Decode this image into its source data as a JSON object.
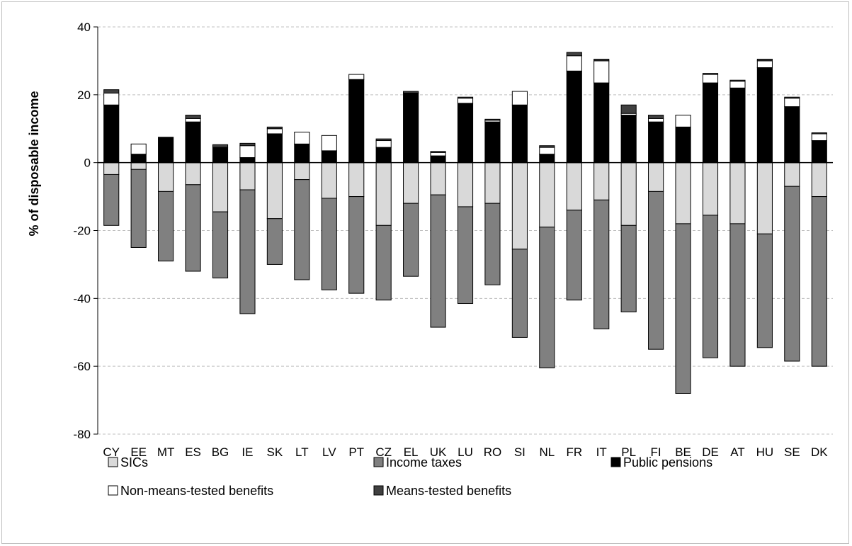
{
  "chart_data": {
    "type": "bar",
    "stacked": true,
    "title": "",
    "xlabel": "",
    "ylabel": "% of disposable income",
    "ylim": [
      -80,
      40
    ],
    "yticks": [
      40,
      20,
      0,
      -20,
      -40,
      -60,
      -80
    ],
    "grid": true,
    "legend_position": "bottom",
    "categories": [
      "CY",
      "EE",
      "MT",
      "ES",
      "BG",
      "IE",
      "SK",
      "LT",
      "LV",
      "PT",
      "CZ",
      "EL",
      "UK",
      "LU",
      "RO",
      "SI",
      "NL",
      "FR",
      "IT",
      "PL",
      "FI",
      "BE",
      "DE",
      "AT",
      "HU",
      "SE",
      "DK"
    ],
    "series": [
      {
        "name": "SICs",
        "color": "#d9d9d9",
        "values": [
          -3.5,
          -2,
          -8.5,
          -6.5,
          -14.5,
          -8,
          -16.5,
          -5,
          -10.5,
          -10,
          -18.5,
          -12,
          -9.5,
          -13,
          -12,
          -25.5,
          -19,
          -14,
          -11,
          -18.5,
          -8.5,
          -18,
          -15.5,
          -18,
          -21,
          -7,
          -10
        ]
      },
      {
        "name": "Income taxes",
        "color": "#808080",
        "values": [
          -15,
          -23,
          -20.5,
          -25.5,
          -19.5,
          -36.5,
          -13.5,
          -29.5,
          -27,
          -28.5,
          -22,
          -21.5,
          -39,
          -28.5,
          -24,
          -26,
          -41.5,
          -26.5,
          -38,
          -25.5,
          -46.5,
          -50,
          -42,
          -42,
          -33.5,
          -51.5,
          -50
        ]
      },
      {
        "name": "Public pensions",
        "color": "#000000",
        "values": [
          17,
          2.5,
          7.5,
          12,
          4.5,
          1.5,
          8.5,
          5.5,
          3.5,
          24.5,
          4.5,
          20.5,
          2,
          17.5,
          12,
          17,
          2.5,
          27,
          23.5,
          14,
          12,
          10.5,
          23.5,
          22,
          28,
          16.5,
          6.5
        ]
      },
      {
        "name": "Non-means-tested benefits",
        "color": "#ffffff",
        "values": [
          3.5,
          3,
          0,
          1,
          0,
          3.5,
          1.5,
          3.5,
          4.5,
          1.5,
          2,
          0,
          1,
          1.5,
          0.5,
          4,
          2,
          4.5,
          6.5,
          0.5,
          1,
          3.5,
          2.5,
          2,
          2,
          2.5,
          2
        ]
      },
      {
        "name": "Means-tested benefits",
        "color": "#404040",
        "values": [
          1,
          0,
          0,
          1,
          0.8,
          0.7,
          0.5,
          0,
          0,
          0,
          0.5,
          0.5,
          0.3,
          0.3,
          0.3,
          0,
          0.5,
          1,
          0.5,
          2.5,
          1,
          0,
          0.3,
          0.3,
          0.5,
          0.3,
          0.3
        ]
      }
    ],
    "legend": [
      {
        "label": "SICs",
        "color": "#d9d9d9"
      },
      {
        "label": "Income taxes",
        "color": "#808080"
      },
      {
        "label": "Public pensions",
        "color": "#000000"
      },
      {
        "label": "Non-means-tested benefits",
        "color": "#ffffff"
      },
      {
        "label": "Means-tested benefits",
        "color": "#404040"
      }
    ]
  }
}
